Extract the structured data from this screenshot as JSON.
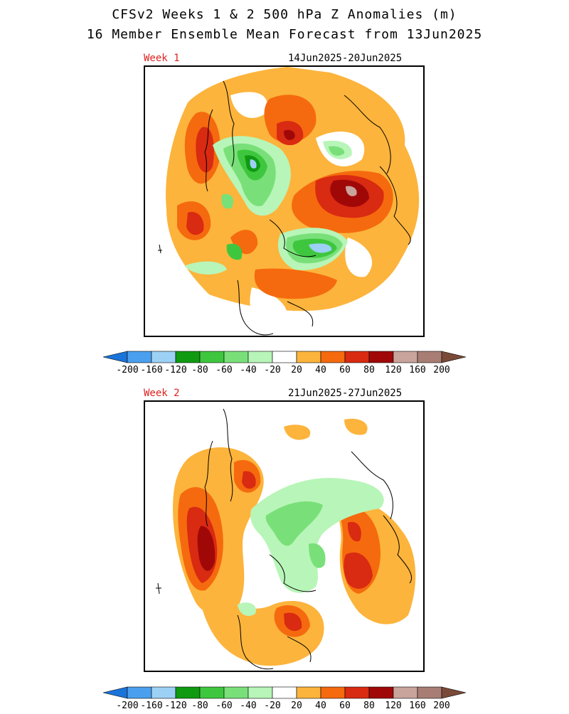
{
  "header": {
    "title_line1": "CFSv2 Weeks 1 & 2 500 hPa Z Anomalies (m)",
    "title_line2": "16 Member Ensemble Mean Forecast from 13Jun2025"
  },
  "panels": [
    {
      "week_label": "Week 1",
      "date_range": "14Jun2025-20Jun2025"
    },
    {
      "week_label": "Week 2",
      "date_range": "21Jun2025-27Jun2025"
    }
  ],
  "colorbar": {
    "labels": [
      "-200",
      "-160",
      "-120",
      "-80",
      "-60",
      "-40",
      "-20",
      "20",
      "40",
      "60",
      "80",
      "120",
      "160",
      "200"
    ],
    "colors": [
      "#1a73d9",
      "#4aa0ee",
      "#9dd0f5",
      "#0f9a12",
      "#3ec73e",
      "#79e079",
      "#b8f5b8",
      "#ffffff",
      "#fcb43c",
      "#f56a0e",
      "#d92a12",
      "#a00808",
      "#c8a49c",
      "#a87e74",
      "#7a4a38"
    ]
  },
  "colors": {
    "pos20": "#fcb43c",
    "pos40": "#f56a0e",
    "pos60": "#d92a12",
    "pos80": "#a00808",
    "pos120": "#c8a49c",
    "neg20": "#b8f5b8",
    "neg40": "#79e079",
    "neg60": "#3ec73e",
    "neg80": "#0f9a12",
    "neg120": "#9dd0f5"
  }
}
